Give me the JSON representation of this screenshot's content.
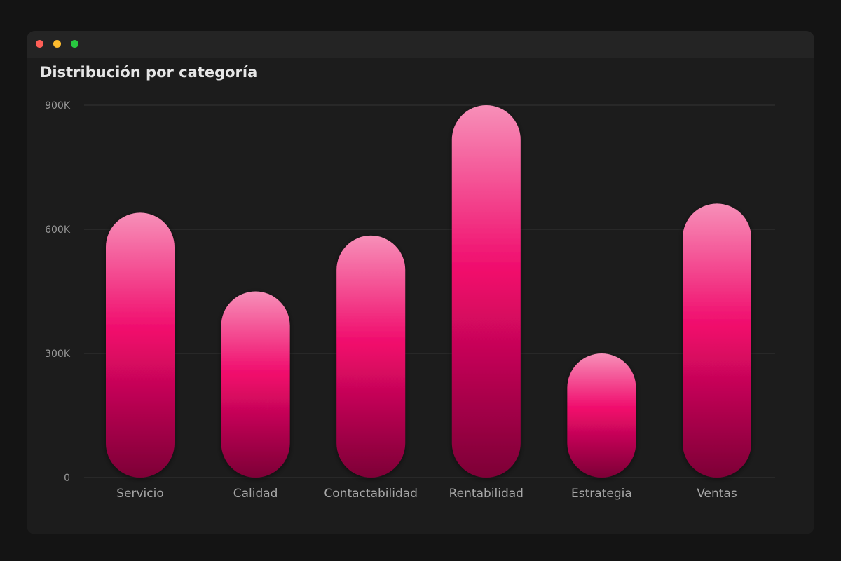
{
  "window": {
    "controls": [
      "close",
      "minimize",
      "maximize"
    ],
    "colors": {
      "close": "#ff5f57",
      "minimize": "#febc2e",
      "maximize": "#28c840"
    }
  },
  "chart_data": {
    "type": "bar",
    "title": "Distribución por categoría",
    "categories": [
      "Servicio",
      "Calidad",
      "Contactabilidad",
      "Rentabilidad",
      "Estrategia",
      "Ventas"
    ],
    "values": [
      640000,
      450000,
      585000,
      900000,
      300000,
      662000
    ],
    "ylim": [
      0,
      900000
    ],
    "yticks": [
      0,
      300000,
      600000,
      900000
    ],
    "ytick_labels": [
      "0",
      "300K",
      "600K",
      "900K"
    ],
    "xlabel": "",
    "ylabel": "",
    "grid": true,
    "colors": {
      "top": "#f78fb8",
      "mid": "#f0096b",
      "bottom": "#7d0036"
    }
  }
}
